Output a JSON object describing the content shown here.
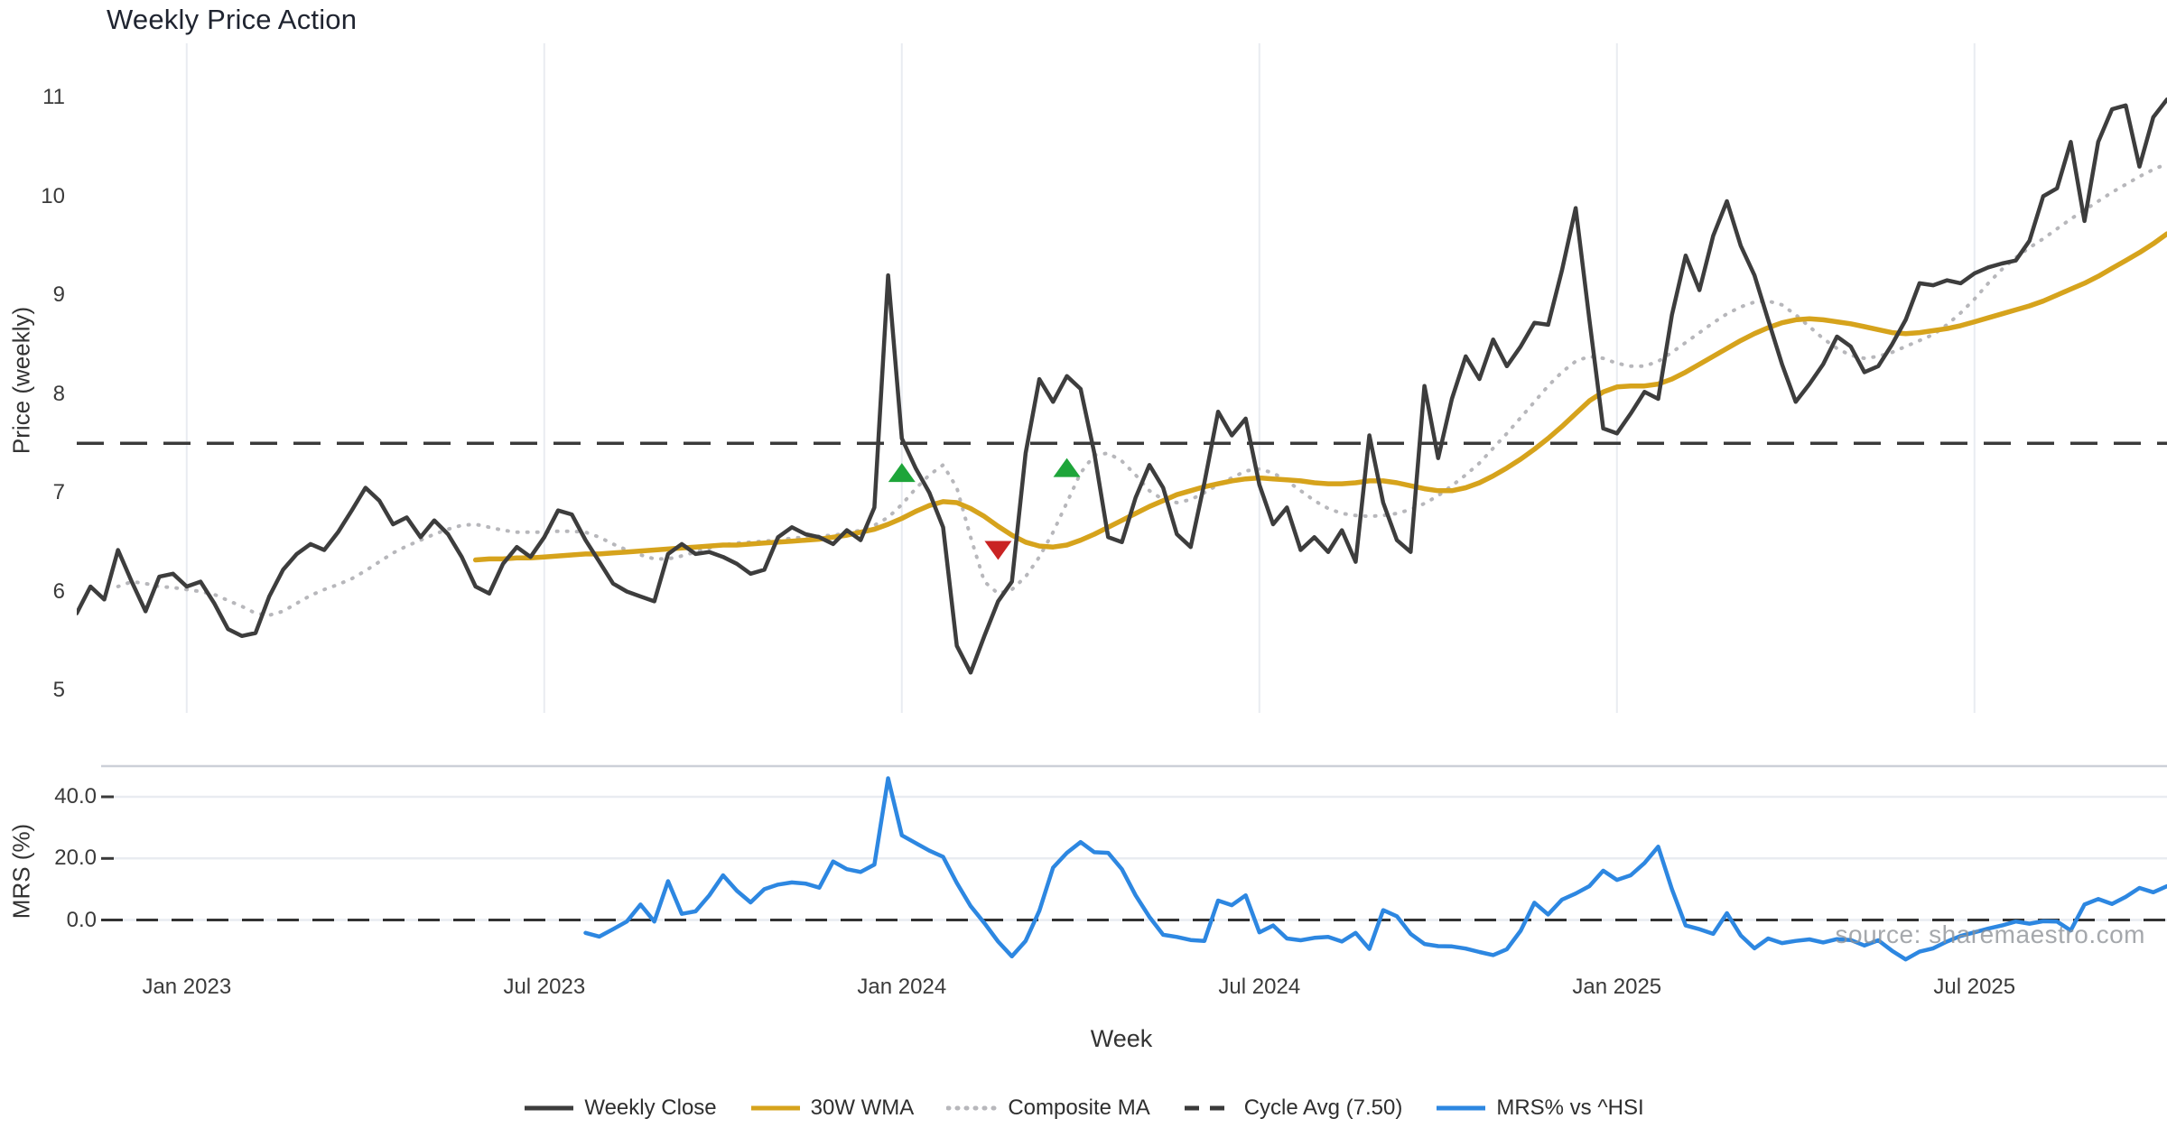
{
  "title": "Weekly Price Action",
  "watermark": "source: sharemaestro.com",
  "axes": {
    "price_axis_label": "Price (weekly)",
    "mrs_axis_label": "MRS (%)",
    "x_axis_label": "Week",
    "price_ticks": [
      11,
      10,
      9,
      8,
      7,
      6,
      5
    ],
    "mrs_ticks": [
      "40.0",
      "20.0",
      "0.0"
    ],
    "mrs_tick_values": [
      40,
      20,
      0
    ],
    "x_ticks": [
      {
        "week": 8,
        "label": "Jan 2023"
      },
      {
        "week": 34,
        "label": "Jul 2023"
      },
      {
        "week": 60,
        "label": "Jan 2024"
      },
      {
        "week": 86,
        "label": "Jul 2024"
      },
      {
        "week": 112,
        "label": "Jan 2025"
      },
      {
        "week": 138,
        "label": "Jul 2025"
      }
    ]
  },
  "legend": {
    "items": [
      {
        "label": "Weekly Close",
        "color": "#3d3d3d",
        "dash": "solid"
      },
      {
        "label": "30W WMA",
        "color": "#d6a31c",
        "dash": "solid"
      },
      {
        "label": "Composite MA",
        "color": "#b7b7bb",
        "dash": "dot"
      },
      {
        "label": "Cycle Avg (7.50)",
        "color": "#3a3a3a",
        "dash": "dash"
      },
      {
        "label": "MRS% vs ^HSI",
        "color": "#2d87e1",
        "dash": "solid"
      }
    ]
  },
  "colors": {
    "weekly_close": "#3d3d3d",
    "wma": "#d6a31c",
    "composite": "#b7b7bb",
    "cycle_avg": "#3a3a3a",
    "mrs": "#2d87e1",
    "buy_marker": "#1ea53a",
    "sell_marker": "#c92323",
    "gridline": "#e9ecf1",
    "separator": "#ccd0d8"
  },
  "chart_data": [
    {
      "type": "line",
      "panel": "price",
      "ylabel": "Price (weekly)",
      "ylim": [
        4.8,
        11.5
      ],
      "x_unit": "week_index",
      "weeks_total": 153,
      "cycle_avg_value": 7.5,
      "series": [
        {
          "name": "Weekly Close",
          "start_week": 0,
          "values": [
            5.78,
            6.05,
            5.92,
            6.42,
            6.1,
            5.8,
            6.15,
            6.18,
            6.05,
            6.1,
            5.88,
            5.62,
            5.55,
            5.58,
            5.95,
            6.22,
            6.38,
            6.48,
            6.42,
            6.6,
            6.82,
            7.05,
            6.92,
            6.68,
            6.75,
            6.55,
            6.72,
            6.58,
            6.35,
            6.05,
            5.98,
            6.28,
            6.45,
            6.35,
            6.55,
            6.82,
            6.78,
            6.52,
            6.3,
            6.08,
            6.0,
            5.95,
            5.9,
            6.38,
            6.48,
            6.38,
            6.4,
            6.35,
            6.28,
            6.18,
            6.22,
            6.55,
            6.65,
            6.58,
            6.55,
            6.48,
            6.62,
            6.52,
            6.85,
            9.2,
            7.55,
            7.25,
            7.0,
            6.65,
            5.45,
            5.18,
            5.55,
            5.9,
            6.1,
            7.4,
            8.15,
            7.92,
            8.18,
            8.05,
            7.4,
            6.55,
            6.5,
            6.95,
            7.28,
            7.05,
            6.58,
            6.45,
            7.1,
            7.82,
            7.58,
            7.75,
            7.08,
            6.68,
            6.85,
            6.42,
            6.55,
            6.4,
            6.62,
            6.3,
            7.58,
            6.9,
            6.52,
            6.4,
            8.08,
            7.35,
            7.95,
            8.38,
            8.15,
            8.55,
            8.28,
            8.48,
            8.72,
            8.7,
            9.25,
            9.88,
            8.75,
            7.65,
            7.6,
            7.8,
            8.02,
            7.95,
            8.8,
            9.4,
            9.05,
            9.6,
            9.95,
            9.5,
            9.2,
            8.75,
            8.3,
            7.92,
            8.1,
            8.3,
            8.58,
            8.48,
            8.22,
            8.28,
            8.5,
            8.75,
            9.12,
            9.1,
            9.15,
            9.12,
            9.22,
            9.28,
            9.32,
            9.35,
            9.55,
            10.0,
            10.08,
            10.55,
            9.75,
            10.55,
            10.88,
            10.92,
            10.3,
            10.8,
            10.98
          ]
        },
        {
          "name": "30W WMA",
          "start_week": 29,
          "values": [
            6.32,
            6.33,
            6.33,
            6.34,
            6.34,
            6.35,
            6.36,
            6.37,
            6.38,
            6.38,
            6.39,
            6.4,
            6.41,
            6.42,
            6.43,
            6.44,
            6.45,
            6.46,
            6.47,
            6.47,
            6.48,
            6.49,
            6.5,
            6.51,
            6.52,
            6.53,
            6.55,
            6.57,
            6.6,
            6.63,
            6.68,
            6.74,
            6.81,
            6.87,
            6.91,
            6.9,
            6.84,
            6.76,
            6.66,
            6.57,
            6.5,
            6.46,
            6.45,
            6.47,
            6.52,
            6.58,
            6.65,
            6.72,
            6.79,
            6.86,
            6.92,
            6.98,
            7.02,
            7.06,
            7.09,
            7.12,
            7.14,
            7.15,
            7.14,
            7.13,
            7.12,
            7.1,
            7.09,
            7.09,
            7.1,
            7.12,
            7.12,
            7.1,
            7.07,
            7.04,
            7.02,
            7.02,
            7.05,
            7.1,
            7.17,
            7.25,
            7.34,
            7.44,
            7.55,
            7.67,
            7.8,
            7.93,
            8.02,
            8.07,
            8.08,
            8.08,
            8.1,
            8.15,
            8.22,
            8.3,
            8.38,
            8.46,
            8.54,
            8.61,
            8.67,
            8.72,
            8.75,
            8.76,
            8.75,
            8.73,
            8.71,
            8.68,
            8.65,
            8.62,
            8.61,
            8.62,
            8.64,
            8.66,
            8.69,
            8.73,
            8.77,
            8.81,
            8.85,
            8.89,
            8.94,
            9.0,
            9.06,
            9.12,
            9.19,
            9.27,
            9.35,
            9.43,
            9.52,
            9.62
          ]
        },
        {
          "name": "Composite MA",
          "start_week": 3,
          "values": [
            6.05,
            6.1,
            6.08,
            6.05,
            6.04,
            6.02,
            6.0,
            5.97,
            5.91,
            5.85,
            5.78,
            5.76,
            5.8,
            5.88,
            5.96,
            6.02,
            6.07,
            6.13,
            6.21,
            6.3,
            6.39,
            6.46,
            6.52,
            6.58,
            6.63,
            6.67,
            6.68,
            6.65,
            6.62,
            6.6,
            6.6,
            6.6,
            6.61,
            6.61,
            6.6,
            6.55,
            6.48,
            6.42,
            6.37,
            6.33,
            6.33,
            6.36,
            6.4,
            6.44,
            6.47,
            6.49,
            6.5,
            6.51,
            6.52,
            6.54,
            6.55,
            6.56,
            6.57,
            6.59,
            6.62,
            6.67,
            6.75,
            6.88,
            7.04,
            7.18,
            7.28,
            7.05,
            6.55,
            6.1,
            5.98,
            6.02,
            6.15,
            6.35,
            6.6,
            6.9,
            7.2,
            7.38,
            7.4,
            7.32,
            7.18,
            7.02,
            6.93,
            6.9,
            6.93,
            7.0,
            7.08,
            7.15,
            7.22,
            7.24,
            7.2,
            7.12,
            7.02,
            6.92,
            6.84,
            6.79,
            6.77,
            6.76,
            6.77,
            6.79,
            6.83,
            6.89,
            6.97,
            7.07,
            7.18,
            7.3,
            7.45,
            7.6,
            7.76,
            7.92,
            8.08,
            8.22,
            8.33,
            8.38,
            8.36,
            8.31,
            8.28,
            8.28,
            8.33,
            8.42,
            8.52,
            8.62,
            8.72,
            8.81,
            8.88,
            8.93,
            8.94,
            8.9,
            8.8,
            8.68,
            8.56,
            8.46,
            8.39,
            8.36,
            8.38,
            8.42,
            8.48,
            8.54,
            8.6,
            8.7,
            8.82,
            8.96,
            9.12,
            9.26,
            9.38,
            9.48,
            9.57,
            9.67,
            9.77,
            9.86,
            9.95,
            10.04,
            10.12,
            10.2,
            10.27,
            10.33
          ]
        }
      ],
      "markers": {
        "buy_signals": [
          {
            "week": 60,
            "price": 7.2
          },
          {
            "week": 72,
            "price": 7.25
          }
        ],
        "sell_signals": [
          {
            "week": 67,
            "price": 6.42
          }
        ]
      }
    },
    {
      "type": "line",
      "panel": "mrs",
      "ylabel": "MRS (%)",
      "ylim": [
        -17,
        50
      ],
      "x_unit": "week_index",
      "zero_line": 0,
      "series": [
        {
          "name": "MRS% vs ^HSI",
          "start_week": 37,
          "values": [
            -4.2,
            -5.4,
            -3.0,
            -0.5,
            5.0,
            -0.5,
            12.6,
            2.0,
            2.8,
            8.0,
            14.5,
            9.5,
            5.7,
            10.0,
            11.5,
            12.2,
            11.8,
            10.5,
            19.0,
            16.5,
            15.6,
            18.0,
            46.0,
            27.5,
            25.0,
            22.5,
            20.5,
            12.0,
            4.5,
            -1.0,
            -7.0,
            -11.8,
            -6.8,
            3.0,
            17.0,
            21.8,
            25.3,
            22.0,
            21.8,
            16.5,
            8.0,
            1.0,
            -4.8,
            -5.5,
            -6.5,
            -6.8,
            6.3,
            4.8,
            8.0,
            -4.0,
            -1.8,
            -6.0,
            -6.6,
            -5.8,
            -5.5,
            -7.0,
            -4.2,
            -9.4,
            3.2,
            1.2,
            -4.5,
            -7.8,
            -8.5,
            -8.6,
            -9.3,
            -10.4,
            -11.4,
            -9.5,
            -3.5,
            5.6,
            1.8,
            6.6,
            8.6,
            11.0,
            16.0,
            13.0,
            14.5,
            18.5,
            23.8,
            10.0,
            -1.8,
            -3.0,
            -4.5,
            2.2,
            -5.0,
            -9.2,
            -6.0,
            -7.5,
            -6.8,
            -6.3,
            -7.3,
            -6.2,
            -6.5,
            -8.3,
            -6.6,
            -10.0,
            -12.8,
            -10.3,
            -9.2,
            -7.0,
            -5.2,
            -4.0,
            -2.8,
            -1.8,
            -0.5,
            -1.2,
            -0.4,
            -0.5,
            -3.4,
            5.0,
            6.8,
            5.2,
            7.5,
            10.4,
            9.0,
            11.0
          ]
        }
      ]
    }
  ]
}
